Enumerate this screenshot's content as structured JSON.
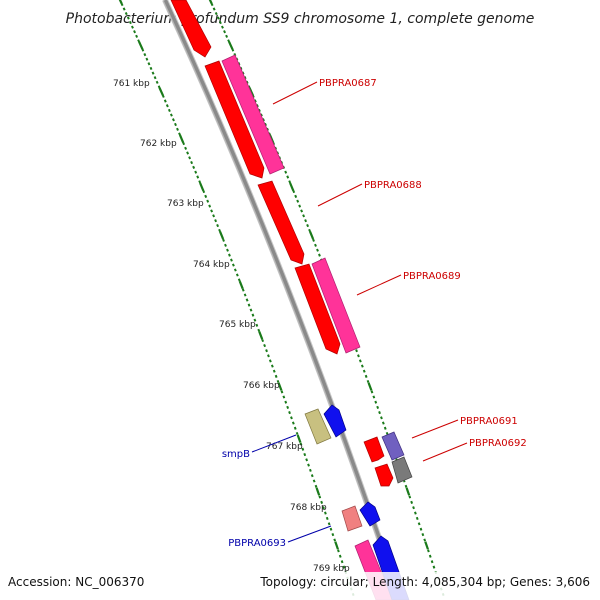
{
  "title": "Photobacterium profundum SS9 chromosome 1, complete genome",
  "footer": {
    "accession": "Accession: NC_006370",
    "topology": "Topology: circular; Length: 4,085,304 bp; Genes: 3,606"
  },
  "colors": {
    "backbone": "#8a8a8a",
    "tick": "#1a7a1a",
    "gene_red": "#ff0000",
    "gene_magenta": "#ff3399",
    "gene_blue": "#1010ee",
    "gene_olive": "#c8c080",
    "gene_salmon": "#f08080",
    "gene_purple": "#7060c0",
    "gene_gray": "#7a7a7a",
    "label_red": "#cc0000",
    "label_blue": "#0000aa"
  },
  "kbp_labels": [
    "761 kbp",
    "762 kbp",
    "763 kbp",
    "764 kbp",
    "765 kbp",
    "766 kbp",
    "767 kbp",
    "768 kbp",
    "769 kbp"
  ],
  "gene_labels": {
    "pbpra0687": "PBPRA0687",
    "pbpra0688": "PBPRA0688",
    "pbpra0689": "PBPRA0689",
    "pbpra0691": "PBPRA0691",
    "pbpra0692": "PBPRA0692",
    "smpb": "smpB",
    "pbpra0693": "PBPRA0693"
  }
}
